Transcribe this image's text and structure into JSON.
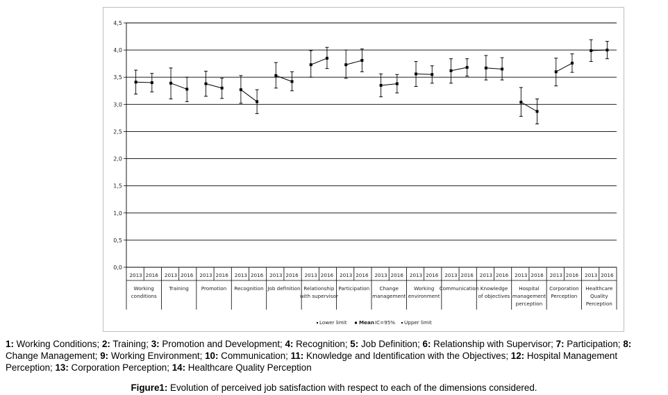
{
  "chart_data": {
    "type": "line",
    "title": "",
    "xlabel": "",
    "ylabel": "",
    "ylim": [
      0,
      4.5
    ],
    "yticks": [
      "0,0",
      "0,5",
      "1,0",
      "1,5",
      "2,0",
      "2,5",
      "3,0",
      "3,5",
      "4,0",
      "4,5"
    ],
    "grid": true,
    "years": [
      "2013",
      "2016"
    ],
    "categories": [
      [
        "Working",
        "conditions"
      ],
      [
        "Training"
      ],
      [
        "Promotion"
      ],
      [
        "Recognition"
      ],
      [
        "Job definition"
      ],
      [
        "Relationship",
        "with supervisor"
      ],
      [
        "Participation"
      ],
      [
        "Change",
        "management"
      ],
      [
        "Working",
        "environment"
      ],
      [
        "Communication"
      ],
      [
        "Knowledge",
        "of objectives"
      ],
      [
        "Hospital",
        "management",
        "perception"
      ],
      [
        "Corporation",
        "Perception"
      ],
      [
        "Healthcare",
        "Quality",
        "Perception"
      ]
    ],
    "mean": [
      [
        3.41,
        3.4
      ],
      [
        3.39,
        3.28
      ],
      [
        3.38,
        3.3
      ],
      [
        3.27,
        3.05
      ],
      [
        3.53,
        3.42
      ],
      [
        3.73,
        3.85
      ],
      [
        3.73,
        3.81
      ],
      [
        3.35,
        3.38
      ],
      [
        3.56,
        3.55
      ],
      [
        3.62,
        3.68
      ],
      [
        3.67,
        3.65
      ],
      [
        3.04,
        2.87
      ],
      [
        3.6,
        3.76
      ],
      [
        3.99,
        4.0
      ]
    ],
    "lower": [
      [
        3.19,
        3.23
      ],
      [
        3.1,
        3.05
      ],
      [
        3.15,
        3.11
      ],
      [
        3.02,
        2.83
      ],
      [
        3.3,
        3.25
      ],
      [
        3.5,
        3.66
      ],
      [
        3.48,
        3.6
      ],
      [
        3.14,
        3.21
      ],
      [
        3.33,
        3.39
      ],
      [
        3.39,
        3.52
      ],
      [
        3.45,
        3.45
      ],
      [
        2.78,
        2.64
      ],
      [
        3.34,
        3.59
      ],
      [
        3.79,
        3.84
      ]
    ],
    "upper": [
      [
        3.63,
        3.57
      ],
      [
        3.67,
        3.5
      ],
      [
        3.61,
        3.48
      ],
      [
        3.53,
        3.27
      ],
      [
        3.77,
        3.6
      ],
      [
        3.99,
        4.05
      ],
      [
        4.0,
        4.02
      ],
      [
        3.56,
        3.55
      ],
      [
        3.79,
        3.71
      ],
      [
        3.84,
        3.84
      ],
      [
        3.9,
        3.86
      ],
      [
        3.31,
        3.1
      ],
      [
        3.85,
        3.93
      ],
      [
        4.19,
        4.16
      ]
    ],
    "legend": {
      "position": "bottom",
      "entries": [
        "Lower limit",
        "Mean",
        "IC=95%",
        "Upper limit"
      ]
    }
  },
  "caption_key": [
    {
      "num": "1:",
      "text": " Working Conditions; "
    },
    {
      "num": "2:",
      "text": " Training; "
    },
    {
      "num": "3:",
      "text": " Promotion and Development; "
    },
    {
      "num": "4:",
      "text": " Recognition; "
    },
    {
      "num": "5:",
      "text": " Job Definition; "
    },
    {
      "num": "6:",
      "text": " Relationship with Supervisor; "
    },
    {
      "num": "7:",
      "text": " Participation; "
    },
    {
      "num": "8:",
      "text": " Change Management; "
    },
    {
      "num": "9:",
      "text": " Working Environment; "
    },
    {
      "num": "10:",
      "text": " Communication; "
    },
    {
      "num": "11:",
      "text": " Knowledge and Identification with the Objectives; "
    },
    {
      "num": "12:",
      "text": " Hospital Management Perception; "
    },
    {
      "num": "13:",
      "text": " Corporation Perception; "
    },
    {
      "num": "14:",
      "text": " Healthcare Quality Perception"
    }
  ],
  "caption": {
    "label": "Figure1:",
    "text": " Evolution of perceived job satisfaction with respect to each of the dimensions considered."
  }
}
